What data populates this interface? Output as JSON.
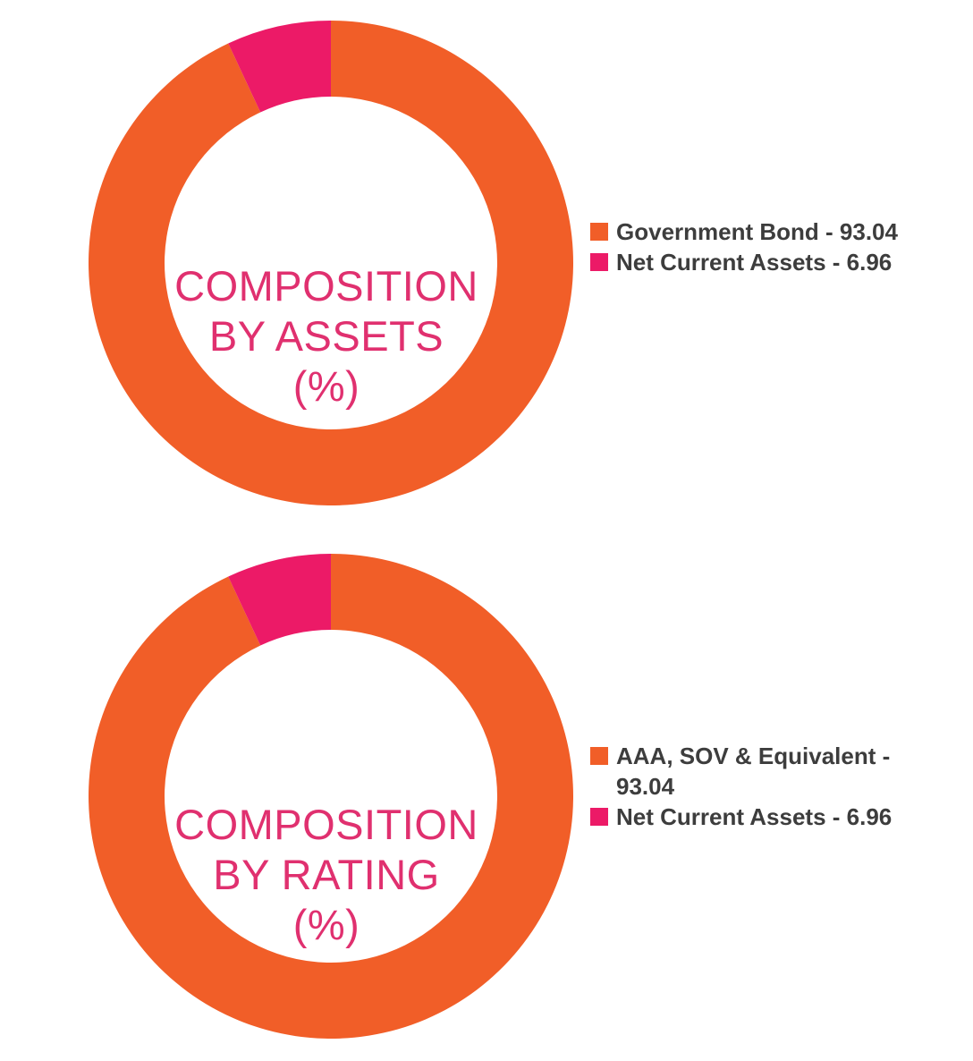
{
  "chart_data": [
    {
      "type": "pie",
      "title_lines": [
        "COMPOSITION",
        "BY ASSETS",
        "(%)"
      ],
      "categories": [
        "Government Bond",
        "Net Current Assets"
      ],
      "values": [
        93.04,
        6.96
      ],
      "legend": [
        {
          "text": "Government Bond - 93.04",
          "color": "#f15e28"
        },
        {
          "text": "Net Current Assets - 6.96",
          "color": "#ec1a67"
        }
      ],
      "legend_placement": "right",
      "colors": [
        "#f15e28",
        "#ec1a67"
      ]
    },
    {
      "type": "pie",
      "title_lines": [
        "COMPOSITION",
        "BY RATING",
        "(%)"
      ],
      "categories": [
        "AAA, SOV & Equivalent",
        "Net Current Assets"
      ],
      "values": [
        93.04,
        6.96
      ],
      "legend": [
        {
          "text": "AAA, SOV & Equivalent - 93.04",
          "color": "#f15e28"
        },
        {
          "text": "Net Current Assets - 6.96",
          "color": "#ec1a67"
        }
      ],
      "legend_placement": "right",
      "colors": [
        "#f15e28",
        "#ec1a67"
      ]
    }
  ],
  "colors": {
    "title_text": "#e0306f",
    "legend_text": "#3d3d3d"
  }
}
